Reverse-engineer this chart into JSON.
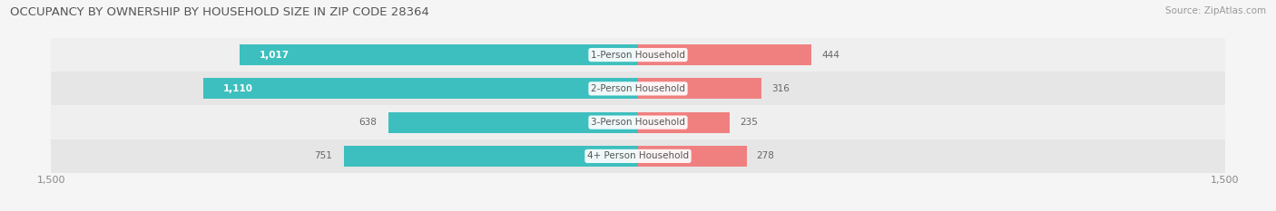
{
  "title": "OCCUPANCY BY OWNERSHIP BY HOUSEHOLD SIZE IN ZIP CODE 28364",
  "source": "Source: ZipAtlas.com",
  "categories": [
    "1-Person Household",
    "2-Person Household",
    "3-Person Household",
    "4+ Person Household"
  ],
  "owner_values": [
    1017,
    1110,
    638,
    751
  ],
  "renter_values": [
    444,
    316,
    235,
    278
  ],
  "owner_color": "#3dbfbf",
  "renter_color": "#f08080",
  "bg_color": "#f5f5f5",
  "xlim": 1500,
  "title_fontsize": 9.5,
  "source_fontsize": 7.5,
  "label_fontsize": 7.5,
  "tick_fontsize": 8,
  "legend_fontsize": 8,
  "bar_height": 0.62,
  "row_colors": [
    "#efefef",
    "#e6e6e6",
    "#efefef",
    "#e6e6e6"
  ]
}
